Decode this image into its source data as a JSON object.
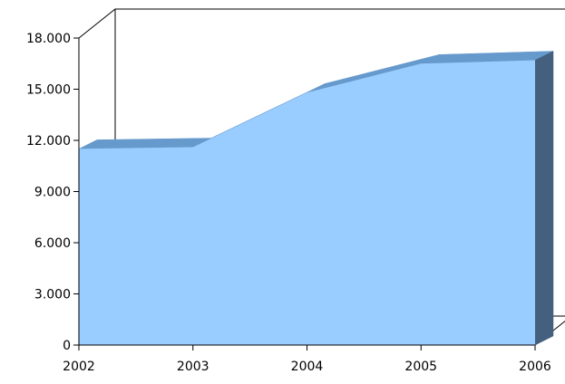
{
  "chart_data": {
    "type": "area",
    "x": [
      "2002",
      "2003",
      "2004",
      "2005",
      "2006"
    ],
    "values": [
      11500,
      11600,
      14800,
      16500,
      16700
    ],
    "ylim": [
      0,
      18000
    ],
    "y_ticks": [
      "0",
      "3.000",
      "6.000",
      "9.000",
      "12.000",
      "15.000",
      "18.000"
    ],
    "grid": false,
    "legend": "none",
    "three_d": true,
    "colors": {
      "face": "#99CCFF",
      "top": "#6699CC",
      "side": "#44607E",
      "axis": "#000000"
    }
  }
}
